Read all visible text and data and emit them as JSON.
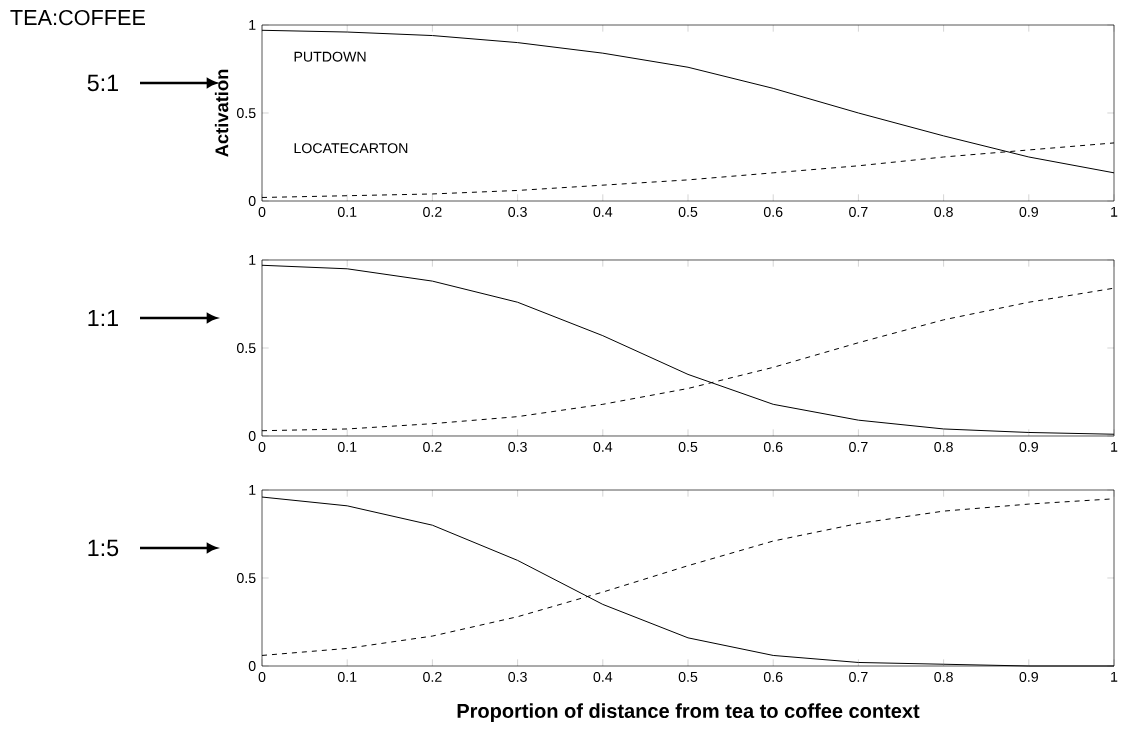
{
  "chart_data": [
    {
      "type": "line",
      "title": "TEA:COFFEE",
      "ylabel": "Activation",
      "annotations": [
        "5:1"
      ],
      "x": [
        0,
        0.1,
        0.2,
        0.3,
        0.4,
        0.5,
        0.6,
        0.7,
        0.8,
        0.9,
        1
      ],
      "xlim": [
        0,
        1
      ],
      "ylim": [
        0,
        1
      ],
      "xticks": [
        0,
        0.1,
        0.2,
        0.3,
        0.4,
        0.5,
        0.6,
        0.7,
        0.8,
        0.9,
        1
      ],
      "yticks": [
        0,
        0.5,
        1
      ],
      "series": [
        {
          "name": "PUTDOWN",
          "color": "#000000",
          "line_style": "solid",
          "values": [
            0.97,
            0.96,
            0.94,
            0.9,
            0.84,
            0.76,
            0.64,
            0.5,
            0.37,
            0.25,
            0.16
          ]
        },
        {
          "name": "LOCATECARTON",
          "color": "#000000",
          "line_style": "dashed",
          "values": [
            0.02,
            0.03,
            0.04,
            0.06,
            0.09,
            0.12,
            0.16,
            0.2,
            0.25,
            0.29,
            0.33
          ]
        }
      ]
    },
    {
      "type": "line",
      "annotations": [
        "1:1"
      ],
      "x": [
        0,
        0.1,
        0.2,
        0.3,
        0.4,
        0.5,
        0.6,
        0.7,
        0.8,
        0.9,
        1
      ],
      "xlim": [
        0,
        1
      ],
      "ylim": [
        0,
        1
      ],
      "xticks": [
        0,
        0.1,
        0.2,
        0.3,
        0.4,
        0.5,
        0.6,
        0.7,
        0.8,
        0.9,
        1
      ],
      "yticks": [
        0,
        0.5,
        1
      ],
      "series": [
        {
          "color": "#000000",
          "line_style": "solid",
          "values": [
            0.97,
            0.95,
            0.88,
            0.76,
            0.57,
            0.35,
            0.18,
            0.09,
            0.04,
            0.02,
            0.01
          ]
        },
        {
          "color": "#000000",
          "line_style": "dashed",
          "values": [
            0.03,
            0.04,
            0.07,
            0.11,
            0.18,
            0.27,
            0.39,
            0.53,
            0.66,
            0.76,
            0.84
          ]
        }
      ]
    },
    {
      "type": "line",
      "xlabel": "Proportion of distance from tea to coffee context",
      "annotations": [
        "1:5"
      ],
      "x": [
        0,
        0.1,
        0.2,
        0.3,
        0.4,
        0.5,
        0.6,
        0.7,
        0.8,
        0.9,
        1
      ],
      "xlim": [
        0,
        1
      ],
      "ylim": [
        0,
        1
      ],
      "xticks": [
        0,
        0.1,
        0.2,
        0.3,
        0.4,
        0.5,
        0.6,
        0.7,
        0.8,
        0.9,
        1
      ],
      "yticks": [
        0,
        0.5,
        1
      ],
      "series": [
        {
          "color": "#000000",
          "line_style": "solid",
          "values": [
            0.96,
            0.91,
            0.8,
            0.6,
            0.35,
            0.16,
            0.06,
            0.02,
            0.01,
            0.0,
            0.0
          ]
        },
        {
          "color": "#000000",
          "line_style": "dashed",
          "values": [
            0.06,
            0.1,
            0.17,
            0.28,
            0.42,
            0.57,
            0.71,
            0.81,
            0.88,
            0.92,
            0.95
          ]
        }
      ]
    }
  ]
}
